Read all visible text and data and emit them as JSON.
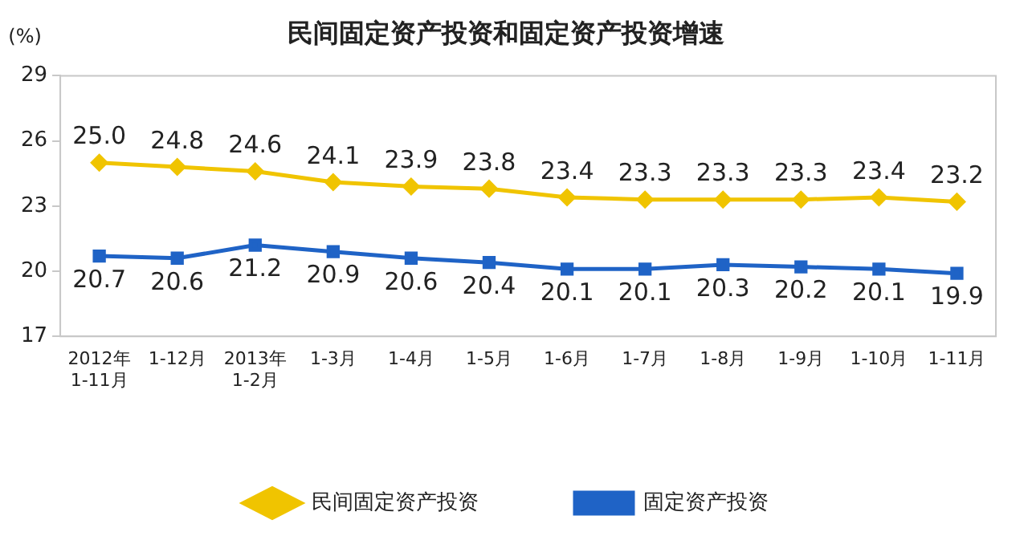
{
  "chart_data": {
    "type": "line",
    "title": "民间固定资产投资和固定资产投资增速",
    "ylabel": "(%)",
    "categories": [
      "2012年\n1-11月",
      "1-12月",
      "2013年\n1-2月",
      "1-3月",
      "1-4月",
      "1-5月",
      "1-6月",
      "1-7月",
      "1-8月",
      "1-9月",
      "1-10月",
      "1-11月"
    ],
    "series": [
      {
        "name": "民间固定资产投资",
        "color": "#f0c400",
        "marker": "diamond",
        "values": [
          25.0,
          24.8,
          24.6,
          24.1,
          23.9,
          23.8,
          23.4,
          23.3,
          23.3,
          23.3,
          23.4,
          23.2
        ],
        "value_labels": [
          "25.0",
          "24.8",
          "24.6",
          "24.1",
          "23.9",
          "23.8",
          "23.4",
          "23.3",
          "23.3",
          "23.3",
          "23.4",
          "23.2"
        ]
      },
      {
        "name": "固定资产投资",
        "color": "#1f63c6",
        "marker": "square",
        "values": [
          20.7,
          20.6,
          21.2,
          20.9,
          20.6,
          20.4,
          20.1,
          20.1,
          20.3,
          20.2,
          20.1,
          19.9
        ],
        "value_labels": [
          "20.7",
          "20.6",
          "21.2",
          "20.9",
          "20.6",
          "20.4",
          "20.1",
          "20.1",
          "20.3",
          "20.2",
          "20.1",
          "19.9"
        ]
      }
    ],
    "ylim": [
      17,
      29
    ],
    "yticks": [
      17,
      20,
      23,
      26,
      29
    ],
    "grid": false,
    "legend": "bottom",
    "line_style": "solid"
  }
}
